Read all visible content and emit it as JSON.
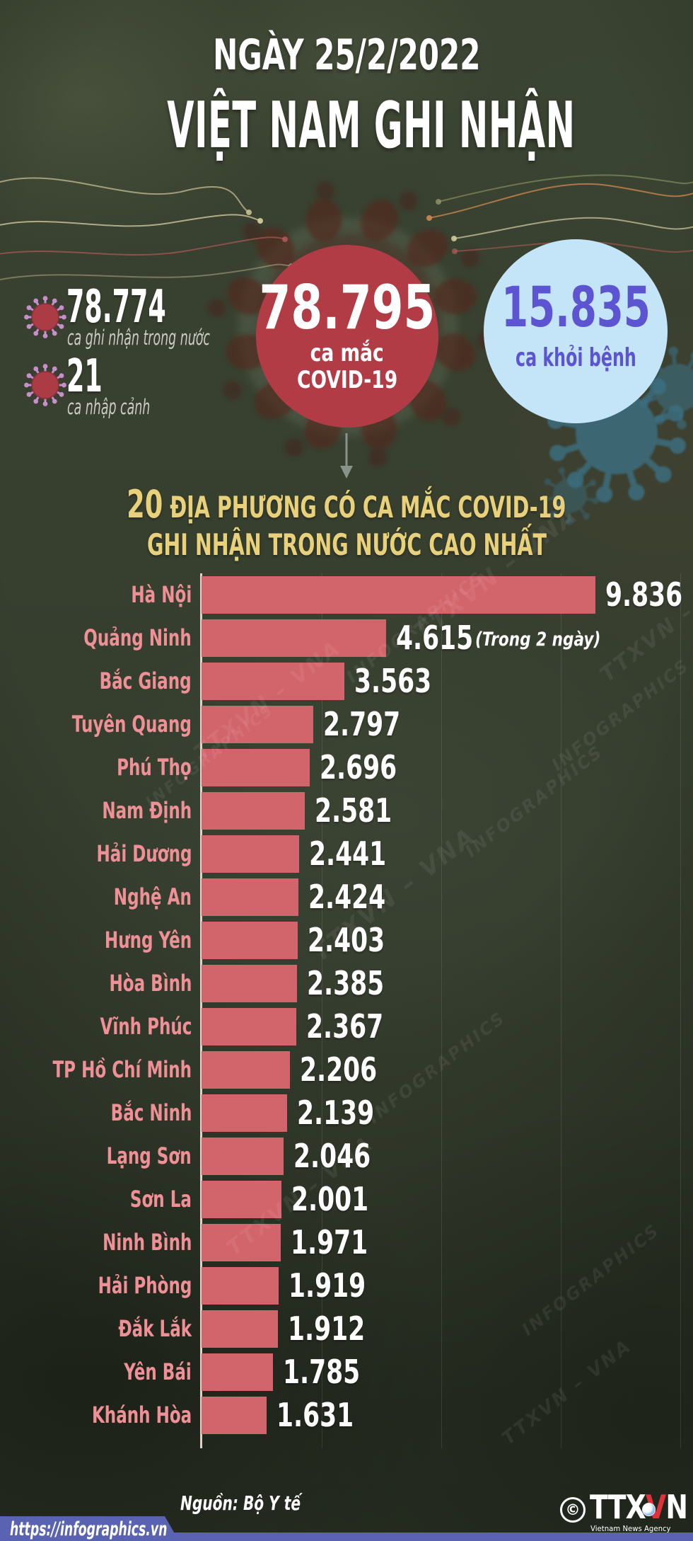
{
  "header": {
    "date_line": "NGÀY 25/2/2022",
    "title": "VIỆT NAM GHI NHẬN"
  },
  "summary": {
    "domestic": {
      "value": "78.774",
      "label": "ca ghi nhận trong nước"
    },
    "imported": {
      "value": "21",
      "label": "ca nhập cảnh"
    },
    "total": {
      "value": "78.795",
      "label_line1": "ca mắc",
      "label_line2": "COVID-19"
    },
    "recovered": {
      "value": "15.835",
      "label": "ca khỏi bệnh"
    }
  },
  "chart": {
    "title_number": "20",
    "title_line1_rest": " ĐỊA PHƯƠNG CÓ CA MẮC COVID-19",
    "title_line2": "GHI NHẬN TRONG NƯỚC CAO NHẤT"
  },
  "chart_data": {
    "type": "bar",
    "orientation": "horizontal",
    "title": "20 ĐỊA PHƯƠNG CÓ CA MẮC COVID-19 GHI NHẬN TRONG NƯỚC CAO NHẤT",
    "categories": [
      "Hà Nội",
      "Quảng Ninh",
      "Bắc Giang",
      "Tuyên Quang",
      "Phú Thọ",
      "Nam Định",
      "Hải Dương",
      "Nghệ An",
      "Hưng Yên",
      "Hòa Bình",
      "Vĩnh Phúc",
      "TP Hồ Chí Minh",
      "Bắc Ninh",
      "Lạng Sơn",
      "Sơn La",
      "Ninh Bình",
      "Hải Phòng",
      "Đắk Lắk",
      "Yên Bái",
      "Khánh Hòa"
    ],
    "values": [
      9836,
      4615,
      3563,
      2797,
      2696,
      2581,
      2441,
      2424,
      2403,
      2385,
      2367,
      2206,
      2139,
      2046,
      2001,
      1971,
      1919,
      1912,
      1785,
      1631
    ],
    "value_labels": [
      "9.836",
      "4.615",
      "3.563",
      "2.797",
      "2.696",
      "2.581",
      "2.441",
      "2.424",
      "2.403",
      "2.385",
      "2.367",
      "2.206",
      "2.139",
      "2.046",
      "2.001",
      "1.971",
      "1.919",
      "1.912",
      "1.785",
      "1.631"
    ],
    "annotations": [
      {
        "category": "Quảng Ninh",
        "index": 1,
        "text": "(Trong 2 ngày)"
      }
    ],
    "xlim": [
      0,
      9836
    ],
    "grid": "faint-vertical",
    "legend": "none",
    "bar_color": "#d2646b",
    "label_color": "#ef9096",
    "value_color": "#ffffff"
  },
  "watermarks": {
    "primary": "TTXVN – VNA",
    "secondary": "INFOGRAPHICS"
  },
  "footer": {
    "source": "Nguồn: Bộ Y tế",
    "url": "https://infographics.vn",
    "copyright_symbol": "©",
    "logo_part1": "TTX",
    "logo_part2": "V",
    "logo_part3": "N",
    "logo_subtext": "Vietnam News Agency"
  },
  "colors": {
    "background": "#363e2e",
    "accent_red_circle": "#b23c46",
    "recovered_circle": "#c3e5f7",
    "recovered_text": "#5c54d1",
    "heading_yellow": "#e8d17a",
    "footer_bar": "#5a63b2",
    "logo_red": "#e0323b",
    "virus_icon_body": "#ab3b44",
    "virus_icon_spikes": "#c88fcd"
  }
}
